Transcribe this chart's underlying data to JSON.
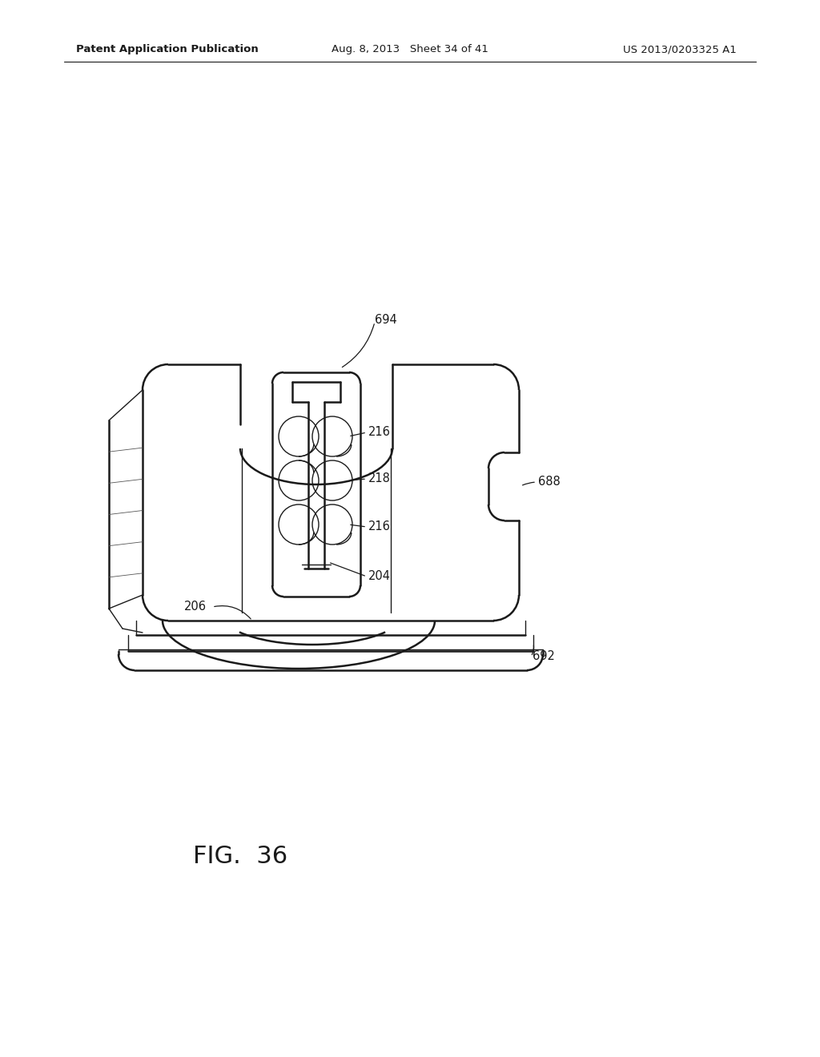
{
  "header_left": "Patent Application Publication",
  "header_mid": "Aug. 8, 2013  Sheet 34 of 41",
  "header_right": "US 2013/0203325 A1",
  "figure_label": "FIG.  36",
  "bg_color": "#ffffff",
  "line_color": "#1a1a1a",
  "label_fontsize": 10.5,
  "header_fontsize": 9.5,
  "fig_label_fontsize": 22
}
